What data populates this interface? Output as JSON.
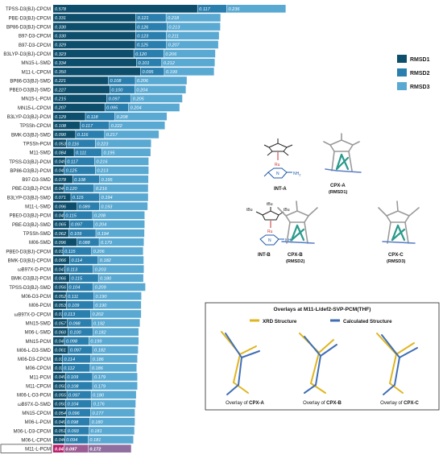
{
  "chart_data": {
    "type": "bar",
    "stacked": true,
    "orientation": "horizontal",
    "legend_position": "right",
    "series": [
      {
        "name": "RMSD1",
        "color": "#0d4e6c"
      },
      {
        "name": "RMSD2",
        "color": "#2b7fae"
      },
      {
        "name": "RMSD3",
        "color": "#5aa9d2"
      }
    ],
    "highlight_row": "M11-L-PCM",
    "highlight_color": "#8e6fa0",
    "rows": [
      {
        "label": "TPSS-D3(BJ)-CPCM",
        "r1": 0.578,
        "r2": 0.117,
        "r3": 0.236
      },
      {
        "label": "PBE-D3(BJ)-CPCM",
        "r1": 0.331,
        "r2": 0.121,
        "r3": 0.218
      },
      {
        "label": "BP86-D3(BJ)-CPCM",
        "r1": 0.33,
        "r2": 0.126,
        "r3": 0.213
      },
      {
        "label": "B97-D3-CPCM",
        "r1": 0.33,
        "r2": 0.123,
        "r3": 0.211
      },
      {
        "label": "B97-D3-CPCM",
        "r1": 0.329,
        "r2": 0.125,
        "r3": 0.207
      },
      {
        "label": "B3LYP-D3(BJ)-CPCM",
        "r1": 0.323,
        "r2": 0.12,
        "r3": 0.206
      },
      {
        "label": "MN15-L-SMD",
        "r1": 0.334,
        "r2": 0.101,
        "r3": 0.212
      },
      {
        "label": "M11-L-CPCM",
        "r1": 0.35,
        "r2": 0.095,
        "r3": 0.199
      },
      {
        "label": "BP86-D3(BJ)-SMD",
        "r1": 0.221,
        "r2": 0.108,
        "r3": 0.206
      },
      {
        "label": "PBE0-D3(BJ)-SMD",
        "r1": 0.227,
        "r2": 0.1,
        "r3": 0.204
      },
      {
        "label": "MN15-L-PCM",
        "r1": 0.215,
        "r2": 0.097,
        "r3": 0.205
      },
      {
        "label": "MN15-L-CPCM",
        "r1": 0.207,
        "r2": 0.095,
        "r3": 0.204
      },
      {
        "label": "B3LYP-D3(BJ)-PCM",
        "r1": 0.129,
        "r2": 0.118,
        "r3": 0.208
      },
      {
        "label": "TPSSh-CPCM",
        "r1": 0.108,
        "r2": 0.117,
        "r3": 0.222
      },
      {
        "label": "BMK-D3(BJ)-SMD",
        "r1": 0.09,
        "r2": 0.116,
        "r3": 0.217
      },
      {
        "label": "TPSSh-PCM",
        "r1": 0.053,
        "r2": 0.116,
        "r3": 0.223
      },
      {
        "label": "M11-SMD",
        "r1": 0.084,
        "r2": 0.111,
        "r3": 0.195
      },
      {
        "label": "TPSS-D3(BJ)-PCM",
        "r1": 0.049,
        "r2": 0.117,
        "r3": 0.216
      },
      {
        "label": "BP86-D3(BJ)-PCM",
        "r1": 0.044,
        "r2": 0.125,
        "r3": 0.213
      },
      {
        "label": "B97-D3-SMD",
        "r1": 0.078,
        "r2": 0.108,
        "r3": 0.195
      },
      {
        "label": "PBE-D3(BJ)-PCM",
        "r1": 0.044,
        "r2": 0.12,
        "r3": 0.216
      },
      {
        "label": "B3LYP-D3(BJ)-SMD",
        "r1": 0.071,
        "r2": 0.115,
        "r3": 0.194
      },
      {
        "label": "M11-L-SMD",
        "r1": 0.096,
        "r2": 0.089,
        "r3": 0.193
      },
      {
        "label": "PBE0-D3(BJ)-PCM",
        "r1": 0.043,
        "r2": 0.115,
        "r3": 0.208
      },
      {
        "label": "PBE-D3(BJ)-SMD",
        "r1": 0.065,
        "r2": 0.097,
        "r3": 0.204
      },
      {
        "label": "TPSSh-SMD",
        "r1": 0.062,
        "r2": 0.109,
        "r3": 0.194
      },
      {
        "label": "M06-SMD",
        "r1": 0.096,
        "r2": 0.088,
        "r3": 0.179
      },
      {
        "label": "PBE0-D3(BJ)-CPCM",
        "r1": 0.039,
        "r2": 0.115,
        "r3": 0.206
      },
      {
        "label": "BMK-D3(BJ)-CPCM",
        "r1": 0.066,
        "r2": 0.114,
        "r3": 0.182
      },
      {
        "label": "ωB97X-D-PCM",
        "r1": 0.047,
        "r2": 0.113,
        "r3": 0.203
      },
      {
        "label": "BMK-D3(BJ)-PCM",
        "r1": 0.066,
        "r2": 0.115,
        "r3": 0.18
      },
      {
        "label": "TPSS-D3(BJ)-SMD",
        "r1": 0.056,
        "r2": 0.104,
        "r3": 0.209
      },
      {
        "label": "M06-D3-PCM",
        "r1": 0.052,
        "r2": 0.111,
        "r3": 0.19
      },
      {
        "label": "M06-PCM",
        "r1": 0.053,
        "r2": 0.109,
        "r3": 0.19
      },
      {
        "label": "ωB97X-D-CPCM",
        "r1": 0.037,
        "r2": 0.113,
        "r3": 0.202
      },
      {
        "label": "MN15-SMD",
        "r1": 0.057,
        "r2": 0.098,
        "r3": 0.192
      },
      {
        "label": "M06-L-SMD",
        "r1": 0.06,
        "r2": 0.1,
        "r3": 0.182
      },
      {
        "label": "MN15-PCM",
        "r1": 0.045,
        "r2": 0.098,
        "r3": 0.199
      },
      {
        "label": "M06-L-D3-SMD",
        "r1": 0.061,
        "r2": 0.097,
        "r3": 0.182
      },
      {
        "label": "M06-D3-CPCM",
        "r1": 0.037,
        "r2": 0.114,
        "r3": 0.186
      },
      {
        "label": "M06-CPCM",
        "r1": 0.036,
        "r2": 0.112,
        "r3": 0.186
      },
      {
        "label": "M11-PCM",
        "r1": 0.049,
        "r2": 0.109,
        "r3": 0.179
      },
      {
        "label": "M11-CPCM",
        "r1": 0.05,
        "r2": 0.108,
        "r3": 0.179
      },
      {
        "label": "M06-L-D3-PCM",
        "r1": 0.055,
        "r2": 0.097,
        "r3": 0.18
      },
      {
        "label": "ωB97X-D-SMD",
        "r1": 0.05,
        "r2": 0.104,
        "r3": 0.176
      },
      {
        "label": "MN15-CPCM",
        "r1": 0.054,
        "r2": 0.096,
        "r3": 0.177
      },
      {
        "label": "M06-L-PCM",
        "r1": 0.049,
        "r2": 0.098,
        "r3": 0.18
      },
      {
        "label": "M06-L-D3-CPCM",
        "r1": 0.051,
        "r2": 0.093,
        "r3": 0.181
      },
      {
        "label": "M06-L-CPCM",
        "r1": 0.046,
        "r2": 0.094,
        "r3": 0.181
      },
      {
        "label": "M11-L-PCM",
        "r1": 0.043,
        "r2": 0.097,
        "r3": 0.172
      }
    ]
  },
  "structures": {
    "int_a": "INT-A",
    "cpx_a": "CPX-A",
    "cpx_a_sub": "(RMSD1)",
    "int_b": "INT-B",
    "cpx_b": "CPX-B",
    "cpx_b_sub": "(RMSD2)",
    "cpx_c": "CPX-C",
    "cpx_c_sub": "(RMSD3)",
    "atom_ru": "Ru",
    "atom_n": "N",
    "atom_nh2": "NH",
    "atom_nh2_sub": "2",
    "atom_tbu": "tBu",
    "atom_ru_plus": "+"
  },
  "overlay": {
    "title": "Overlays at M11-L/def2-SVP-PCM(THF)",
    "legend_xrd": "XRD Structure",
    "legend_calc": "Calculated Structure",
    "xrd_color": "#e0b521",
    "calc_color": "#3f6fb5",
    "caption_prefix": "Overlay of ",
    "captions": [
      "CPX-A",
      "CPX-B",
      "CPX-C"
    ]
  }
}
